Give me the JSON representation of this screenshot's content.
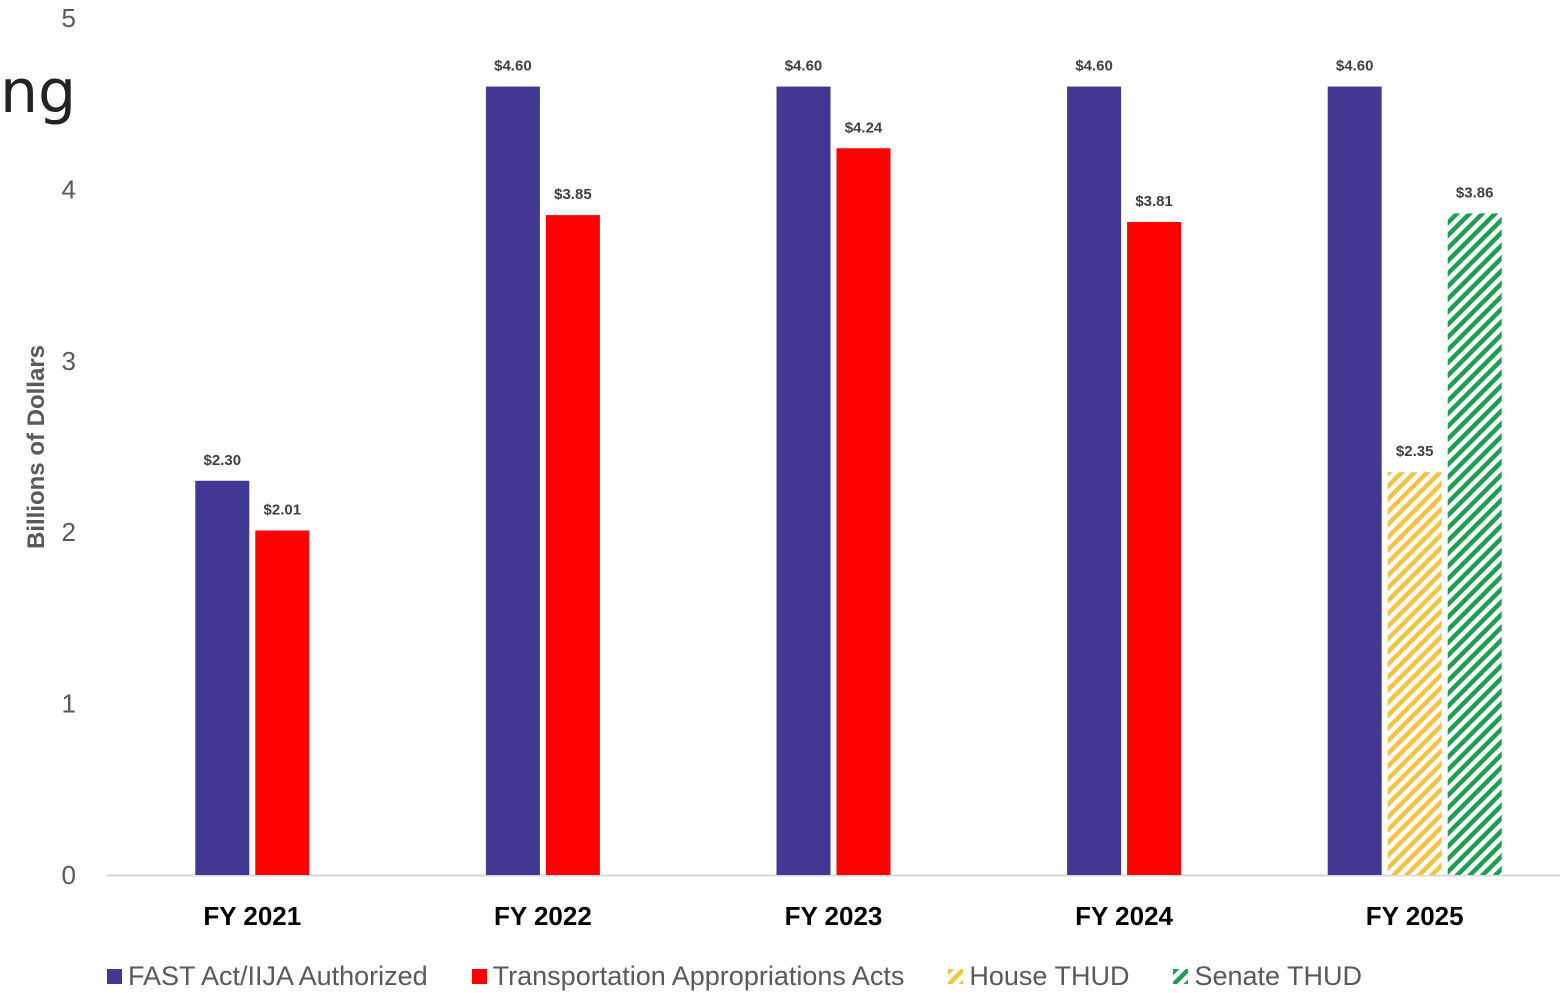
{
  "partial_title": "ng",
  "colors": {
    "fast_act": "#413894",
    "approps": "#ff0000",
    "house": "#f5c242",
    "senate": "#1e9e50",
    "axis_text": "#595959",
    "grid_line": "#d9d9d9"
  },
  "chart_data": {
    "type": "bar",
    "categories": [
      "FY 2021",
      "FY 2022",
      "FY 2023",
      "FY 2024",
      "FY 2025"
    ],
    "ylabel": "Billions of Dollars",
    "xlabel": "",
    "ylim": [
      0,
      5
    ],
    "yticks": [
      "0",
      "1",
      "2",
      "3",
      "4",
      "5"
    ],
    "grid": false,
    "legend_position": "bottom",
    "series": [
      {
        "name": "FAST Act/IIJA Authorized",
        "key": "fast_act",
        "pattern": "solid",
        "values": [
          2.3,
          4.6,
          4.6,
          4.6,
          4.6
        ],
        "labels": [
          "$2.30",
          "$4.60",
          "$4.60",
          "$4.60",
          "$4.60"
        ]
      },
      {
        "name": "Transportation Appropriations Acts",
        "key": "approps",
        "pattern": "solid",
        "values": [
          2.01,
          3.85,
          4.24,
          3.81,
          null
        ],
        "labels": [
          "$2.01",
          "$3.85",
          "$4.24",
          "$3.81",
          null
        ]
      },
      {
        "name": "House THUD",
        "key": "house",
        "pattern": "hatched",
        "values": [
          null,
          null,
          null,
          null,
          2.35
        ],
        "labels": [
          null,
          null,
          null,
          null,
          "$2.35"
        ]
      },
      {
        "name": "Senate THUD",
        "key": "senate",
        "pattern": "hatched",
        "values": [
          null,
          null,
          null,
          null,
          3.86
        ],
        "labels": [
          null,
          null,
          null,
          null,
          "$3.86"
        ]
      }
    ]
  }
}
